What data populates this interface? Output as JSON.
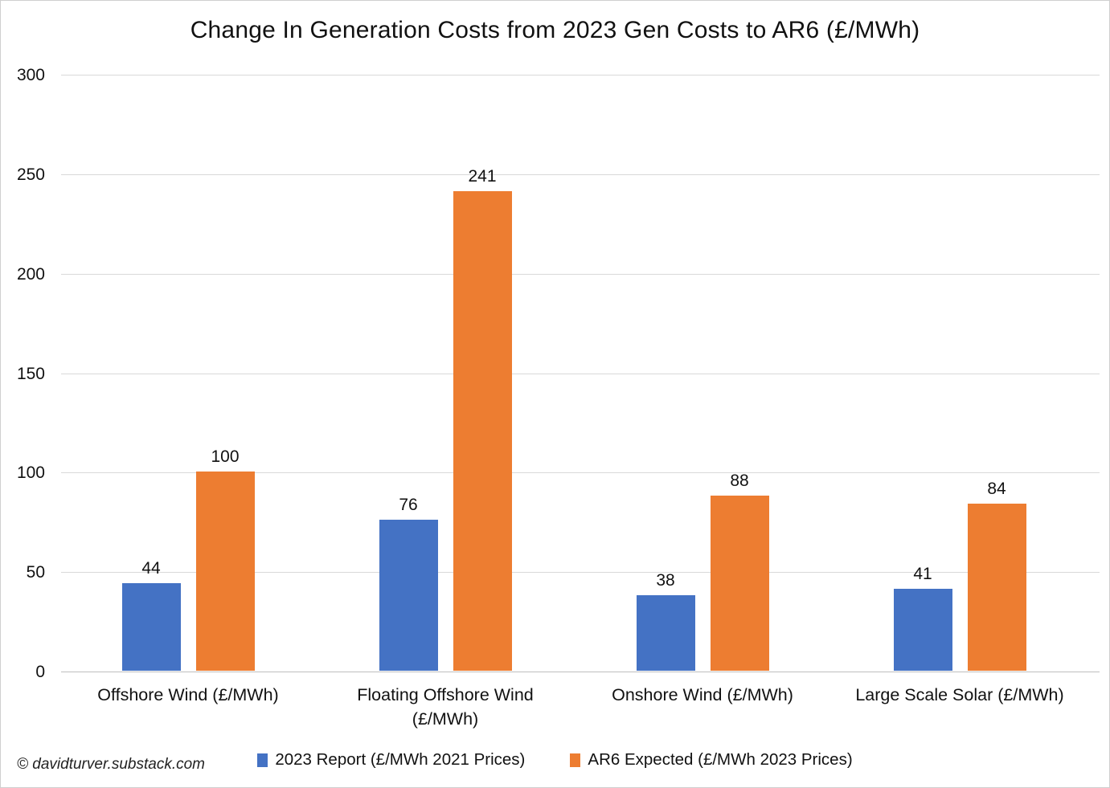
{
  "watermark": "© davidturver.substack.com",
  "chart_data": {
    "type": "bar",
    "title": "Change In Generation Costs from 2023 Gen Costs to AR6 (£/MWh)",
    "categories": [
      "Offshore Wind (£/MWh)",
      "Floating Offshore Wind (£/MWh)",
      "Onshore Wind (£/MWh)",
      "Large Scale Solar (£/MWh)"
    ],
    "series": [
      {
        "name": "2023 Report (£/MWh 2021 Prices)",
        "color": "#4472C4",
        "values": [
          44,
          76,
          38,
          41
        ]
      },
      {
        "name": "AR6 Expected (£/MWh 2023 Prices)",
        "color": "#ED7D31",
        "values": [
          100,
          241,
          88,
          84
        ]
      }
    ],
    "ylabel": "",
    "xlabel": "",
    "ylim": [
      0,
      300
    ],
    "yticks": [
      0,
      50,
      100,
      150,
      200,
      250,
      300
    ],
    "grid": true,
    "legend_position": "bottom",
    "colors": {
      "gridline": "#D9D9D9",
      "axis_line": "#BFBFBF",
      "text": "#111111",
      "background": "#FFFFFF"
    }
  }
}
